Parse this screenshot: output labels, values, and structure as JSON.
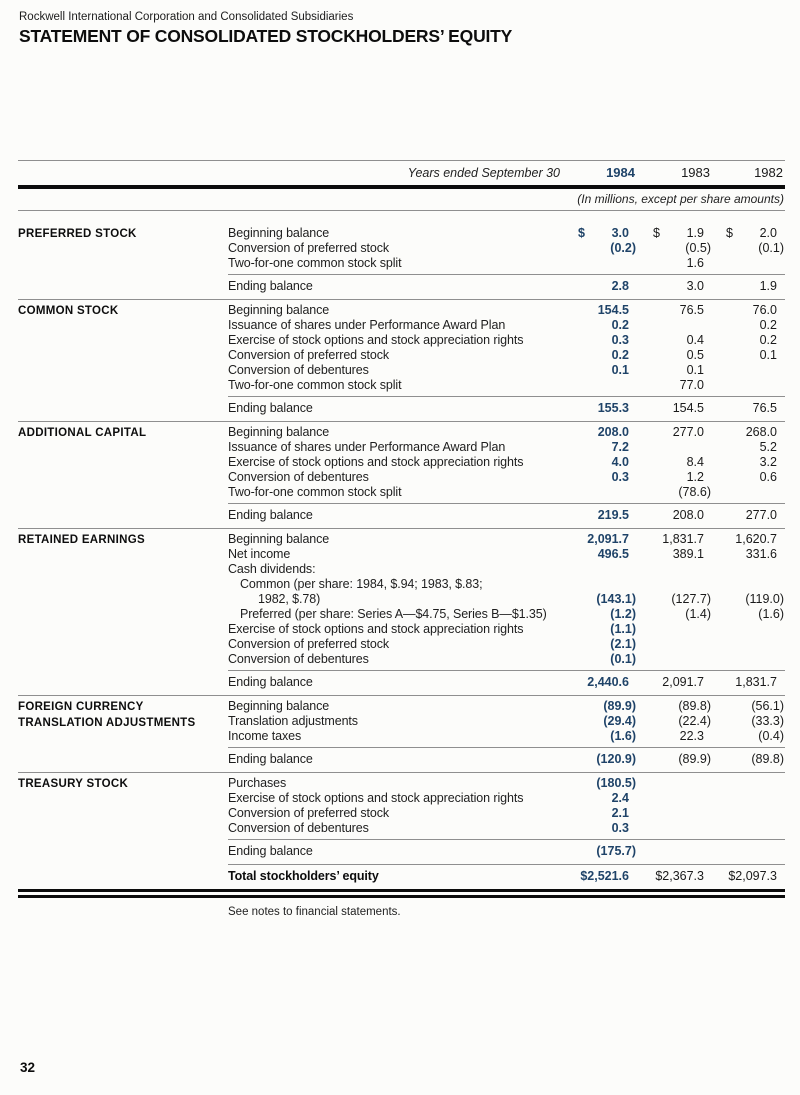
{
  "colors": {
    "accent": "#1f4368",
    "rule_thin": "#8f8f8f",
    "rule_thick": "#0c0c0c"
  },
  "header": {
    "company": "Rockwell International Corporation and Consolidated Subsidiaries",
    "title": "STATEMENT OF CONSOLIDATED STOCKHOLDERS’ EQUITY"
  },
  "table": {
    "period_label": "Years ended September 30",
    "years": [
      "1984",
      "1983",
      "1982"
    ],
    "units_note": "(In millions, except per share amounts)",
    "sections": [
      {
        "id": "preferred-stock",
        "label": "PREFERRED STOCK",
        "rows": [
          {
            "desc": "Beginning balance",
            "values": [
              "3.0",
              "1.9",
              "2.0"
            ],
            "dollar_sign": true
          },
          {
            "desc": "Conversion of preferred stock",
            "values": [
              "(0.2)",
              "(0.5)",
              "(0.1)"
            ]
          },
          {
            "desc": "Two-for-one common stock split",
            "values": [
              "",
              "1.6",
              ""
            ]
          }
        ],
        "ending": {
          "desc": "Ending balance",
          "values": [
            "2.8",
            "3.0",
            "1.9"
          ]
        }
      },
      {
        "id": "common-stock",
        "label": "COMMON STOCK",
        "rows": [
          {
            "desc": "Beginning balance",
            "values": [
              "154.5",
              "76.5",
              "76.0"
            ]
          },
          {
            "desc": "Issuance of shares under Performance Award Plan",
            "values": [
              "0.2",
              "",
              "0.2"
            ]
          },
          {
            "desc": "Exercise of stock options and stock appreciation rights",
            "values": [
              "0.3",
              "0.4",
              "0.2"
            ]
          },
          {
            "desc": "Conversion of preferred stock",
            "values": [
              "0.2",
              "0.5",
              "0.1"
            ]
          },
          {
            "desc": "Conversion of debentures",
            "values": [
              "0.1",
              "0.1",
              ""
            ]
          },
          {
            "desc": "Two-for-one common stock split",
            "values": [
              "",
              "77.0",
              ""
            ]
          }
        ],
        "ending": {
          "desc": "Ending balance",
          "values": [
            "155.3",
            "154.5",
            "76.5"
          ]
        }
      },
      {
        "id": "additional-capital",
        "label": "ADDITIONAL CAPITAL",
        "rows": [
          {
            "desc": "Beginning balance",
            "values": [
              "208.0",
              "277.0",
              "268.0"
            ]
          },
          {
            "desc": "Issuance of shares under Performance Award Plan",
            "values": [
              "7.2",
              "",
              "5.2"
            ]
          },
          {
            "desc": "Exercise of stock options and stock appreciation rights",
            "values": [
              "4.0",
              "8.4",
              "3.2"
            ]
          },
          {
            "desc": "Conversion of debentures",
            "values": [
              "0.3",
              "1.2",
              "0.6"
            ]
          },
          {
            "desc": "Two-for-one common stock split",
            "values": [
              "",
              "(78.6)",
              ""
            ]
          }
        ],
        "ending": {
          "desc": "Ending balance",
          "values": [
            "219.5",
            "208.0",
            "277.0"
          ]
        }
      },
      {
        "id": "retained-earnings",
        "label": "RETAINED EARNINGS",
        "rows": [
          {
            "desc": "Beginning balance",
            "values": [
              "2,091.7",
              "1,831.7",
              "1,620.7"
            ]
          },
          {
            "desc": "Net income",
            "values": [
              "496.5",
              "389.1",
              "331.6"
            ]
          },
          {
            "desc": "Cash dividends:",
            "values": [
              "",
              "",
              ""
            ]
          },
          {
            "desc": "Common (per share: 1984, $.94; 1983, $.83;",
            "indent": 1,
            "values": [
              "",
              "",
              ""
            ]
          },
          {
            "desc": "1982, $.78)",
            "indent": 2,
            "values": [
              "(143.1)",
              "(127.7)",
              "(119.0)"
            ]
          },
          {
            "desc": "Preferred (per share: Series A—$4.75, Series B—$1.35)",
            "indent": 1,
            "values": [
              "(1.2)",
              "(1.4)",
              "(1.6)"
            ]
          },
          {
            "desc": "Exercise of stock options and stock appreciation rights",
            "values": [
              "(1.1)",
              "",
              ""
            ]
          },
          {
            "desc": "Conversion of preferred stock",
            "values": [
              "(2.1)",
              "",
              ""
            ]
          },
          {
            "desc": "Conversion of debentures",
            "values": [
              "(0.1)",
              "",
              ""
            ]
          }
        ],
        "ending": {
          "desc": "Ending balance",
          "values": [
            "2,440.6",
            "2,091.7",
            "1,831.7"
          ]
        }
      },
      {
        "id": "foreign-currency-translation-adjustments",
        "label": "FOREIGN CURRENCY\nTRANSLATION ADJUSTMENTS",
        "rows": [
          {
            "desc": "Beginning balance",
            "values": [
              "(89.9)",
              "(89.8)",
              "(56.1)"
            ]
          },
          {
            "desc": "Translation adjustments",
            "values": [
              "(29.4)",
              "(22.4)",
              "(33.3)"
            ]
          },
          {
            "desc": "Income taxes",
            "values": [
              "(1.6)",
              "22.3",
              "(0.4)"
            ]
          }
        ],
        "ending": {
          "desc": "Ending balance",
          "values": [
            "(120.9)",
            "(89.9)",
            "(89.8)"
          ]
        }
      },
      {
        "id": "treasury-stock",
        "label": "TREASURY STOCK",
        "rows": [
          {
            "desc": "Purchases",
            "values": [
              "(180.5)",
              "",
              ""
            ]
          },
          {
            "desc": "Exercise of stock options and stock appreciation rights",
            "values": [
              "2.4",
              "",
              ""
            ]
          },
          {
            "desc": "Conversion of preferred stock",
            "values": [
              "2.1",
              "",
              ""
            ]
          },
          {
            "desc": "Conversion of debentures",
            "values": [
              "0.3",
              "",
              ""
            ]
          }
        ],
        "ending": {
          "desc": "Ending balance",
          "values": [
            "(175.7)",
            "",
            ""
          ]
        },
        "total": {
          "desc": "Total stockholders’ equity",
          "values": [
            "$2,521.6",
            "$2,367.3",
            "$2,097.3"
          ]
        }
      }
    ]
  },
  "footer": {
    "note": "See notes to financial statements.",
    "page_number": "32"
  }
}
